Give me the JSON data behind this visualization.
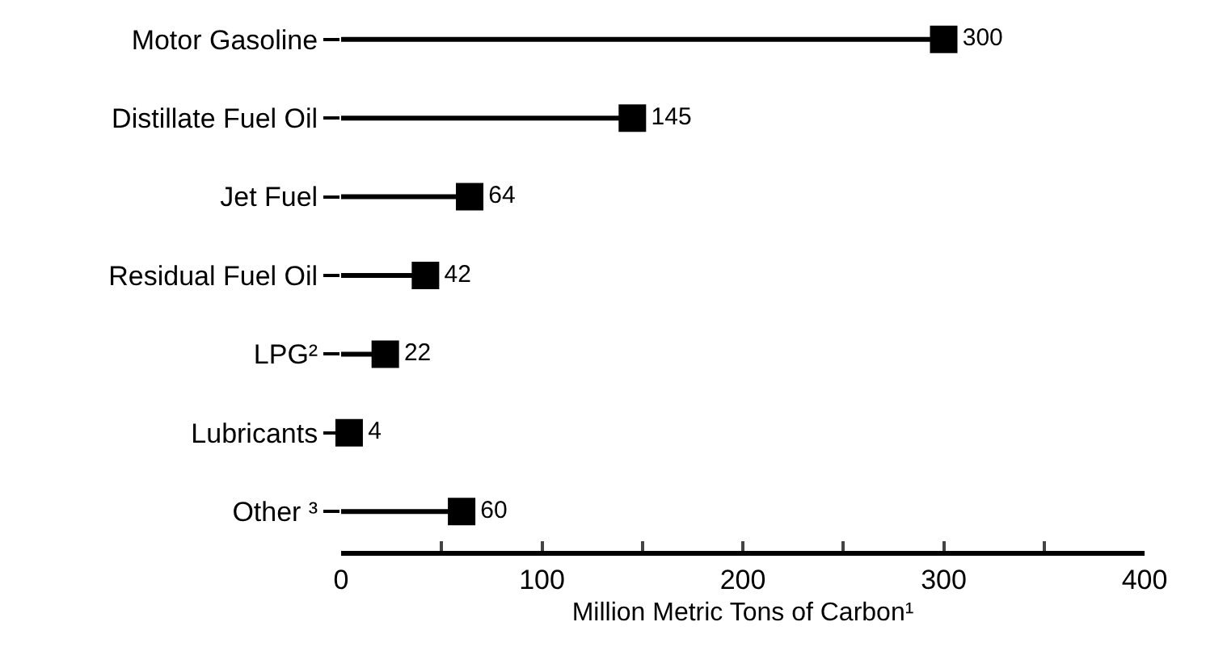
{
  "chart_data": {
    "type": "lollipop",
    "orientation": "horizontal",
    "categories": [
      "Motor Gasoline",
      "Distillate Fuel Oil",
      "Jet Fuel",
      "Residual Fuel Oil",
      "LPG²",
      "Lubricants",
      "Other ³"
    ],
    "values": [
      300,
      145,
      64,
      42,
      22,
      4,
      60
    ],
    "color": "#000000",
    "xlabel": "Million Metric Tons of Carbon¹",
    "xlim": [
      0,
      400
    ],
    "xticks": [
      0,
      {
        "value": 50,
        "label": null
      },
      100,
      {
        "value": 150,
        "label": null
      },
      200,
      {
        "value": 250,
        "label": null
      },
      300,
      {
        "value": 350,
        "label": null
      },
      400
    ],
    "data_labels": true,
    "marker": "square"
  }
}
